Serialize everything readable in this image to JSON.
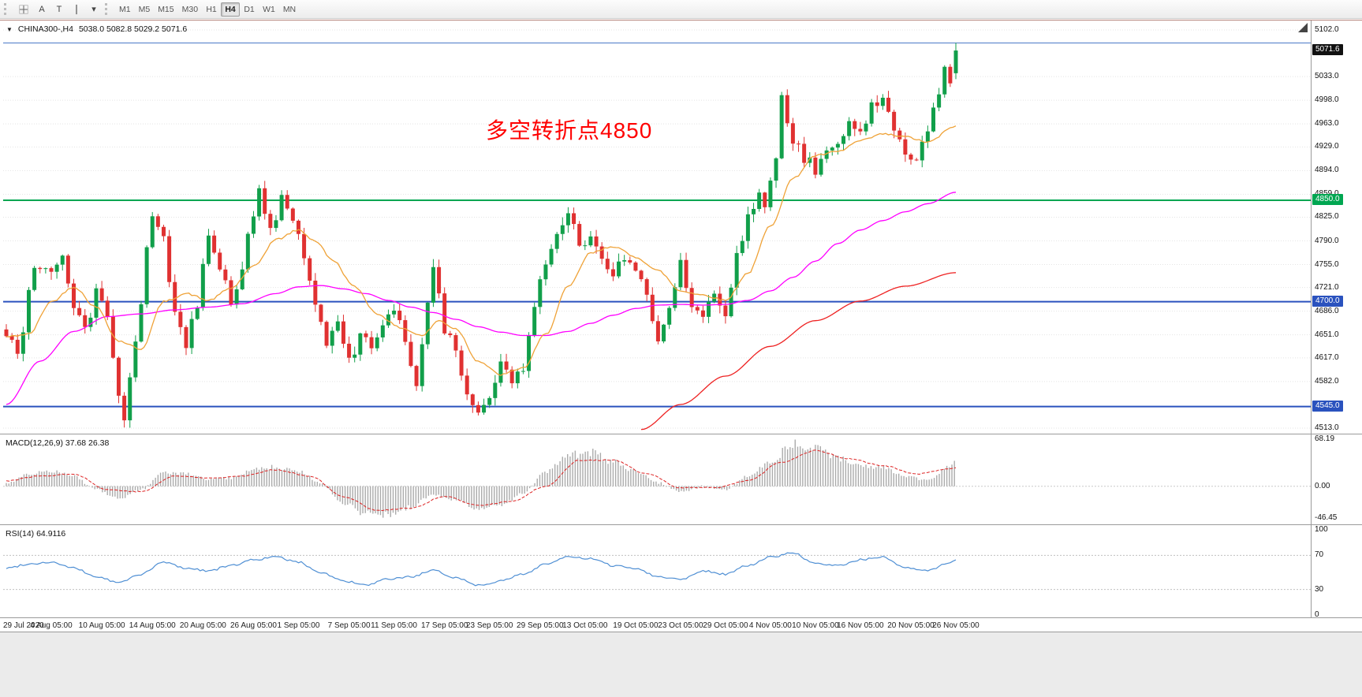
{
  "toolbar": {
    "tools": {
      "text_label": "A",
      "text_cursor": "T",
      "dropdown_caret": "▾"
    },
    "timeframes": [
      "M1",
      "M5",
      "M15",
      "M30",
      "H1",
      "H4",
      "D1",
      "W1",
      "MN"
    ],
    "active_timeframe": "H4"
  },
  "icons": {
    "collapse_triangle": "▼"
  },
  "window": {
    "symbol_title": "CHINA300-,H4",
    "ohlc_line": "5038.0 5082.8 5029.2 5071.6",
    "annotation": {
      "text": "多空转折点4850",
      "color": "#ff0000"
    }
  },
  "price_axis": {
    "range": {
      "top": 5102.0,
      "bottom": 4513.0
    },
    "ticks": [
      "5102.0",
      "5033.0",
      "4998.0",
      "4963.0",
      "4929.0",
      "4894.0",
      "4859.0",
      "4825.0",
      "4790.0",
      "4755.0",
      "4721.0",
      "4686.0",
      "4651.0",
      "4617.0",
      "4582.0",
      "4513.0"
    ],
    "badges": [
      {
        "value": "5071.6",
        "price": 5071.6,
        "bg": "#111111",
        "fg": "#ffffff"
      },
      {
        "value": "4850.0",
        "price": 4850.0,
        "bg": "#00a651",
        "fg": "#ffffff"
      },
      {
        "value": "4700.0",
        "price": 4700.0,
        "bg": "#2a52be",
        "fg": "#ffffff"
      },
      {
        "value": "4545.0",
        "price": 4545.0,
        "bg": "#2a52be",
        "fg": "#ffffff"
      }
    ]
  },
  "time_axis": [
    {
      "label": "29 Jul 2020",
      "i": 0
    },
    {
      "label": "4 Aug 05:00",
      "i": 8
    },
    {
      "label": "10 Aug 05:00",
      "i": 17
    },
    {
      "label": "14 Aug 05:00",
      "i": 26
    },
    {
      "label": "20 Aug 05:00",
      "i": 35
    },
    {
      "label": "26 Aug 05:00",
      "i": 44
    },
    {
      "label": "1 Sep 05:00",
      "i": 52
    },
    {
      "label": "7 Sep 05:00",
      "i": 61
    },
    {
      "label": "11 Sep 05:00",
      "i": 69
    },
    {
      "label": "17 Sep 05:00",
      "i": 78
    },
    {
      "label": "23 Sep 05:00",
      "i": 86
    },
    {
      "label": "29 Sep 05:00",
      "i": 95
    },
    {
      "label": "13 Oct 05:00",
      "i": 103
    },
    {
      "label": "19 Oct 05:00",
      "i": 112
    },
    {
      "label": "23 Oct 05:00",
      "i": 120
    },
    {
      "label": "29 Oct 05:00",
      "i": 128
    },
    {
      "label": "4 Nov 05:00",
      "i": 136
    },
    {
      "label": "10 Nov 05:00",
      "i": 144
    },
    {
      "label": "16 Nov 05:00",
      "i": 152
    },
    {
      "label": "20 Nov 05:00",
      "i": 161
    },
    {
      "label": "26 Nov 05:00",
      "i": 169
    }
  ],
  "macd_panel": {
    "label": "MACD(12,26,9) 37.68 26.38",
    "ticks": [
      "68.19",
      "0.00",
      "-46.45"
    ],
    "values": {
      "macd": 37.68,
      "signal": 26.38
    },
    "range": {
      "max": 68.19,
      "min": -46.45
    }
  },
  "rsi_panel": {
    "label": "RSI(14) 64.9116",
    "ticks": [
      "100",
      "70",
      "30",
      "0"
    ],
    "value": 64.9116,
    "levels": [
      70,
      30
    ]
  },
  "colors": {
    "up": "#119f4a",
    "down": "#e03131",
    "ma_fast": "#efa237",
    "ma_mid": "#ff00ff",
    "ma_slow": "#ee2222",
    "macd_hist": "#ababab",
    "macd_signal": "#dd2222",
    "rsi": "#4f8fd4",
    "grid": "#e4e4e4",
    "hline_blue": "#2a52be",
    "hline_green": "#00a651"
  },
  "chart_data": {
    "type": "candlestick",
    "symbol": "CHINA300-",
    "timeframe": "H4",
    "title": "CHINA300-,H4",
    "ylim": [
      4513.0,
      5102.0
    ],
    "last_candle": {
      "open": 5038.0,
      "high": 5082.8,
      "low": 5029.2,
      "close": 5071.6
    },
    "hlines": [
      {
        "price": 5082.8,
        "color": "#4a78c8",
        "width": 1
      },
      {
        "price": 4850.0,
        "color": "#00a651",
        "width": 2
      },
      {
        "price": 4700.0,
        "color": "#2a52be",
        "width": 2
      },
      {
        "price": 4545.0,
        "color": "#2a52be",
        "width": 2
      }
    ],
    "close_path": [
      [
        0,
        4660
      ],
      [
        2,
        4632
      ],
      [
        5,
        4756
      ],
      [
        8,
        4744
      ],
      [
        10,
        4772
      ],
      [
        12,
        4700
      ],
      [
        14,
        4652
      ],
      [
        16,
        4722
      ],
      [
        18,
        4678
      ],
      [
        20,
        4560
      ],
      [
        21,
        4534
      ],
      [
        23,
        4642
      ],
      [
        26,
        4822
      ],
      [
        28,
        4798
      ],
      [
        30,
        4680
      ],
      [
        32,
        4638
      ],
      [
        34,
        4700
      ],
      [
        36,
        4806
      ],
      [
        38,
        4748
      ],
      [
        40,
        4700
      ],
      [
        42,
        4752
      ],
      [
        44,
        4832
      ],
      [
        45,
        4868
      ],
      [
        47,
        4800
      ],
      [
        49,
        4856
      ],
      [
        51,
        4820
      ],
      [
        53,
        4762
      ],
      [
        55,
        4700
      ],
      [
        57,
        4642
      ],
      [
        59,
        4662
      ],
      [
        61,
        4610
      ],
      [
        63,
        4652
      ],
      [
        65,
        4622
      ],
      [
        67,
        4672
      ],
      [
        69,
        4696
      ],
      [
        71,
        4640
      ],
      [
        73,
        4582
      ],
      [
        75,
        4700
      ],
      [
        76,
        4746
      ],
      [
        78,
        4660
      ],
      [
        80,
        4622
      ],
      [
        82,
        4560
      ],
      [
        84,
        4526
      ],
      [
        86,
        4562
      ],
      [
        88,
        4612
      ],
      [
        90,
        4572
      ],
      [
        92,
        4602
      ],
      [
        94,
        4690
      ],
      [
        96,
        4762
      ],
      [
        98,
        4802
      ],
      [
        100,
        4838
      ],
      [
        102,
        4782
      ],
      [
        104,
        4802
      ],
      [
        106,
        4762
      ],
      [
        108,
        4732
      ],
      [
        110,
        4772
      ],
      [
        112,
        4746
      ],
      [
        114,
        4700
      ],
      [
        116,
        4652
      ],
      [
        118,
        4692
      ],
      [
        120,
        4762
      ],
      [
        122,
        4700
      ],
      [
        124,
        4672
      ],
      [
        126,
        4722
      ],
      [
        128,
        4682
      ],
      [
        130,
        4762
      ],
      [
        132,
        4822
      ],
      [
        134,
        4862
      ],
      [
        135,
        4842
      ],
      [
        137,
        4922
      ],
      [
        138,
        4996
      ],
      [
        140,
        4942
      ],
      [
        142,
        4912
      ],
      [
        144,
        4896
      ],
      [
        146,
        4922
      ],
      [
        148,
        4932
      ],
      [
        150,
        4962
      ],
      [
        152,
        4946
      ],
      [
        154,
        4986
      ],
      [
        156,
        5002
      ],
      [
        158,
        4952
      ],
      [
        160,
        4912
      ],
      [
        162,
        4902
      ],
      [
        164,
        4956
      ],
      [
        166,
        5002
      ],
      [
        167,
        5042
      ],
      [
        168,
        5034
      ],
      [
        169,
        5071.6
      ]
    ],
    "ma_orange_path": [
      [
        0,
        4648
      ],
      [
        4,
        4652
      ],
      [
        8,
        4700
      ],
      [
        12,
        4722
      ],
      [
        16,
        4692
      ],
      [
        20,
        4642
      ],
      [
        24,
        4630
      ],
      [
        28,
        4700
      ],
      [
        32,
        4712
      ],
      [
        36,
        4702
      ],
      [
        40,
        4720
      ],
      [
        44,
        4752
      ],
      [
        48,
        4792
      ],
      [
        52,
        4806
      ],
      [
        55,
        4790
      ],
      [
        58,
        4762
      ],
      [
        62,
        4722
      ],
      [
        66,
        4682
      ],
      [
        70,
        4662
      ],
      [
        74,
        4650
      ],
      [
        77,
        4672
      ],
      [
        80,
        4660
      ],
      [
        84,
        4612
      ],
      [
        88,
        4592
      ],
      [
        92,
        4602
      ],
      [
        96,
        4652
      ],
      [
        100,
        4722
      ],
      [
        104,
        4772
      ],
      [
        108,
        4782
      ],
      [
        112,
        4766
      ],
      [
        116,
        4746
      ],
      [
        120,
        4716
      ],
      [
        124,
        4710
      ],
      [
        128,
        4702
      ],
      [
        132,
        4742
      ],
      [
        136,
        4812
      ],
      [
        140,
        4882
      ],
      [
        144,
        4916
      ],
      [
        148,
        4922
      ],
      [
        152,
        4938
      ],
      [
        156,
        4948
      ],
      [
        160,
        4944
      ],
      [
        164,
        4936
      ],
      [
        169,
        4960
      ]
    ],
    "ma_magenta_path": [
      [
        0,
        4548
      ],
      [
        6,
        4612
      ],
      [
        12,
        4656
      ],
      [
        18,
        4678
      ],
      [
        24,
        4682
      ],
      [
        30,
        4688
      ],
      [
        36,
        4692
      ],
      [
        42,
        4697
      ],
      [
        48,
        4712
      ],
      [
        52,
        4722
      ],
      [
        56,
        4724
      ],
      [
        60,
        4719
      ],
      [
        64,
        4712
      ],
      [
        68,
        4702
      ],
      [
        72,
        4692
      ],
      [
        76,
        4684
      ],
      [
        80,
        4674
      ],
      [
        84,
        4663
      ],
      [
        88,
        4655
      ],
      [
        92,
        4650
      ],
      [
        96,
        4650
      ],
      [
        100,
        4656
      ],
      [
        104,
        4668
      ],
      [
        108,
        4680
      ],
      [
        112,
        4690
      ],
      [
        116,
        4695
      ],
      [
        120,
        4696
      ],
      [
        124,
        4695
      ],
      [
        128,
        4696
      ],
      [
        132,
        4702
      ],
      [
        136,
        4716
      ],
      [
        140,
        4736
      ],
      [
        144,
        4760
      ],
      [
        148,
        4786
      ],
      [
        152,
        4806
      ],
      [
        156,
        4820
      ],
      [
        160,
        4833
      ],
      [
        164,
        4845
      ],
      [
        169,
        4862
      ]
    ],
    "ma_red_path": [
      [
        113,
        4511
      ],
      [
        120,
        4548
      ],
      [
        128,
        4590
      ],
      [
        136,
        4634
      ],
      [
        144,
        4672
      ],
      [
        152,
        4701
      ],
      [
        160,
        4723
      ],
      [
        169,
        4743
      ]
    ],
    "macd_path": [
      [
        0,
        5
      ],
      [
        4,
        18
      ],
      [
        8,
        22
      ],
      [
        12,
        15
      ],
      [
        16,
        -5
      ],
      [
        20,
        -18
      ],
      [
        24,
        -5
      ],
      [
        28,
        20
      ],
      [
        32,
        18
      ],
      [
        36,
        10
      ],
      [
        40,
        12
      ],
      [
        44,
        25
      ],
      [
        48,
        28
      ],
      [
        52,
        22
      ],
      [
        56,
        5
      ],
      [
        60,
        -25
      ],
      [
        64,
        -40
      ],
      [
        68,
        -42
      ],
      [
        72,
        -30
      ],
      [
        76,
        -12
      ],
      [
        80,
        -20
      ],
      [
        84,
        -35
      ],
      [
        88,
        -28
      ],
      [
        92,
        -10
      ],
      [
        96,
        20
      ],
      [
        100,
        45
      ],
      [
        104,
        50
      ],
      [
        108,
        35
      ],
      [
        112,
        22
      ],
      [
        116,
        5
      ],
      [
        120,
        -8
      ],
      [
        124,
        0
      ],
      [
        128,
        -5
      ],
      [
        132,
        15
      ],
      [
        136,
        35
      ],
      [
        140,
        62
      ],
      [
        144,
        55
      ],
      [
        148,
        40
      ],
      [
        152,
        30
      ],
      [
        156,
        28
      ],
      [
        160,
        15
      ],
      [
        164,
        8
      ],
      [
        168,
        30
      ],
      [
        169,
        37.68
      ]
    ],
    "macd_signal_path": [
      [
        0,
        8
      ],
      [
        6,
        15
      ],
      [
        12,
        18
      ],
      [
        18,
        -5
      ],
      [
        24,
        -8
      ],
      [
        30,
        15
      ],
      [
        36,
        12
      ],
      [
        42,
        15
      ],
      [
        48,
        24
      ],
      [
        54,
        15
      ],
      [
        60,
        -15
      ],
      [
        66,
        -35
      ],
      [
        72,
        -32
      ],
      [
        78,
        -15
      ],
      [
        84,
        -28
      ],
      [
        90,
        -22
      ],
      [
        96,
        0
      ],
      [
        102,
        38
      ],
      [
        108,
        38
      ],
      [
        114,
        18
      ],
      [
        120,
        -2
      ],
      [
        126,
        -2
      ],
      [
        132,
        8
      ],
      [
        138,
        35
      ],
      [
        144,
        52
      ],
      [
        150,
        40
      ],
      [
        156,
        30
      ],
      [
        162,
        18
      ],
      [
        168,
        25
      ],
      [
        169,
        26.38
      ]
    ],
    "rsi_path": [
      [
        0,
        55
      ],
      [
        4,
        60
      ],
      [
        8,
        62
      ],
      [
        12,
        55
      ],
      [
        16,
        45
      ],
      [
        20,
        38
      ],
      [
        24,
        48
      ],
      [
        28,
        62
      ],
      [
        32,
        55
      ],
      [
        36,
        52
      ],
      [
        40,
        58
      ],
      [
        44,
        65
      ],
      [
        48,
        68
      ],
      [
        52,
        62
      ],
      [
        56,
        50
      ],
      [
        60,
        40
      ],
      [
        64,
        35
      ],
      [
        68,
        42
      ],
      [
        72,
        45
      ],
      [
        76,
        52
      ],
      [
        80,
        44
      ],
      [
        84,
        35
      ],
      [
        88,
        40
      ],
      [
        92,
        48
      ],
      [
        96,
        60
      ],
      [
        100,
        68
      ],
      [
        104,
        66
      ],
      [
        108,
        58
      ],
      [
        112,
        55
      ],
      [
        116,
        45
      ],
      [
        120,
        42
      ],
      [
        124,
        52
      ],
      [
        128,
        48
      ],
      [
        132,
        58
      ],
      [
        136,
        68
      ],
      [
        140,
        73
      ],
      [
        144,
        60
      ],
      [
        148,
        58
      ],
      [
        152,
        65
      ],
      [
        156,
        68
      ],
      [
        160,
        55
      ],
      [
        164,
        52
      ],
      [
        168,
        62
      ],
      [
        169,
        64.91
      ]
    ]
  }
}
